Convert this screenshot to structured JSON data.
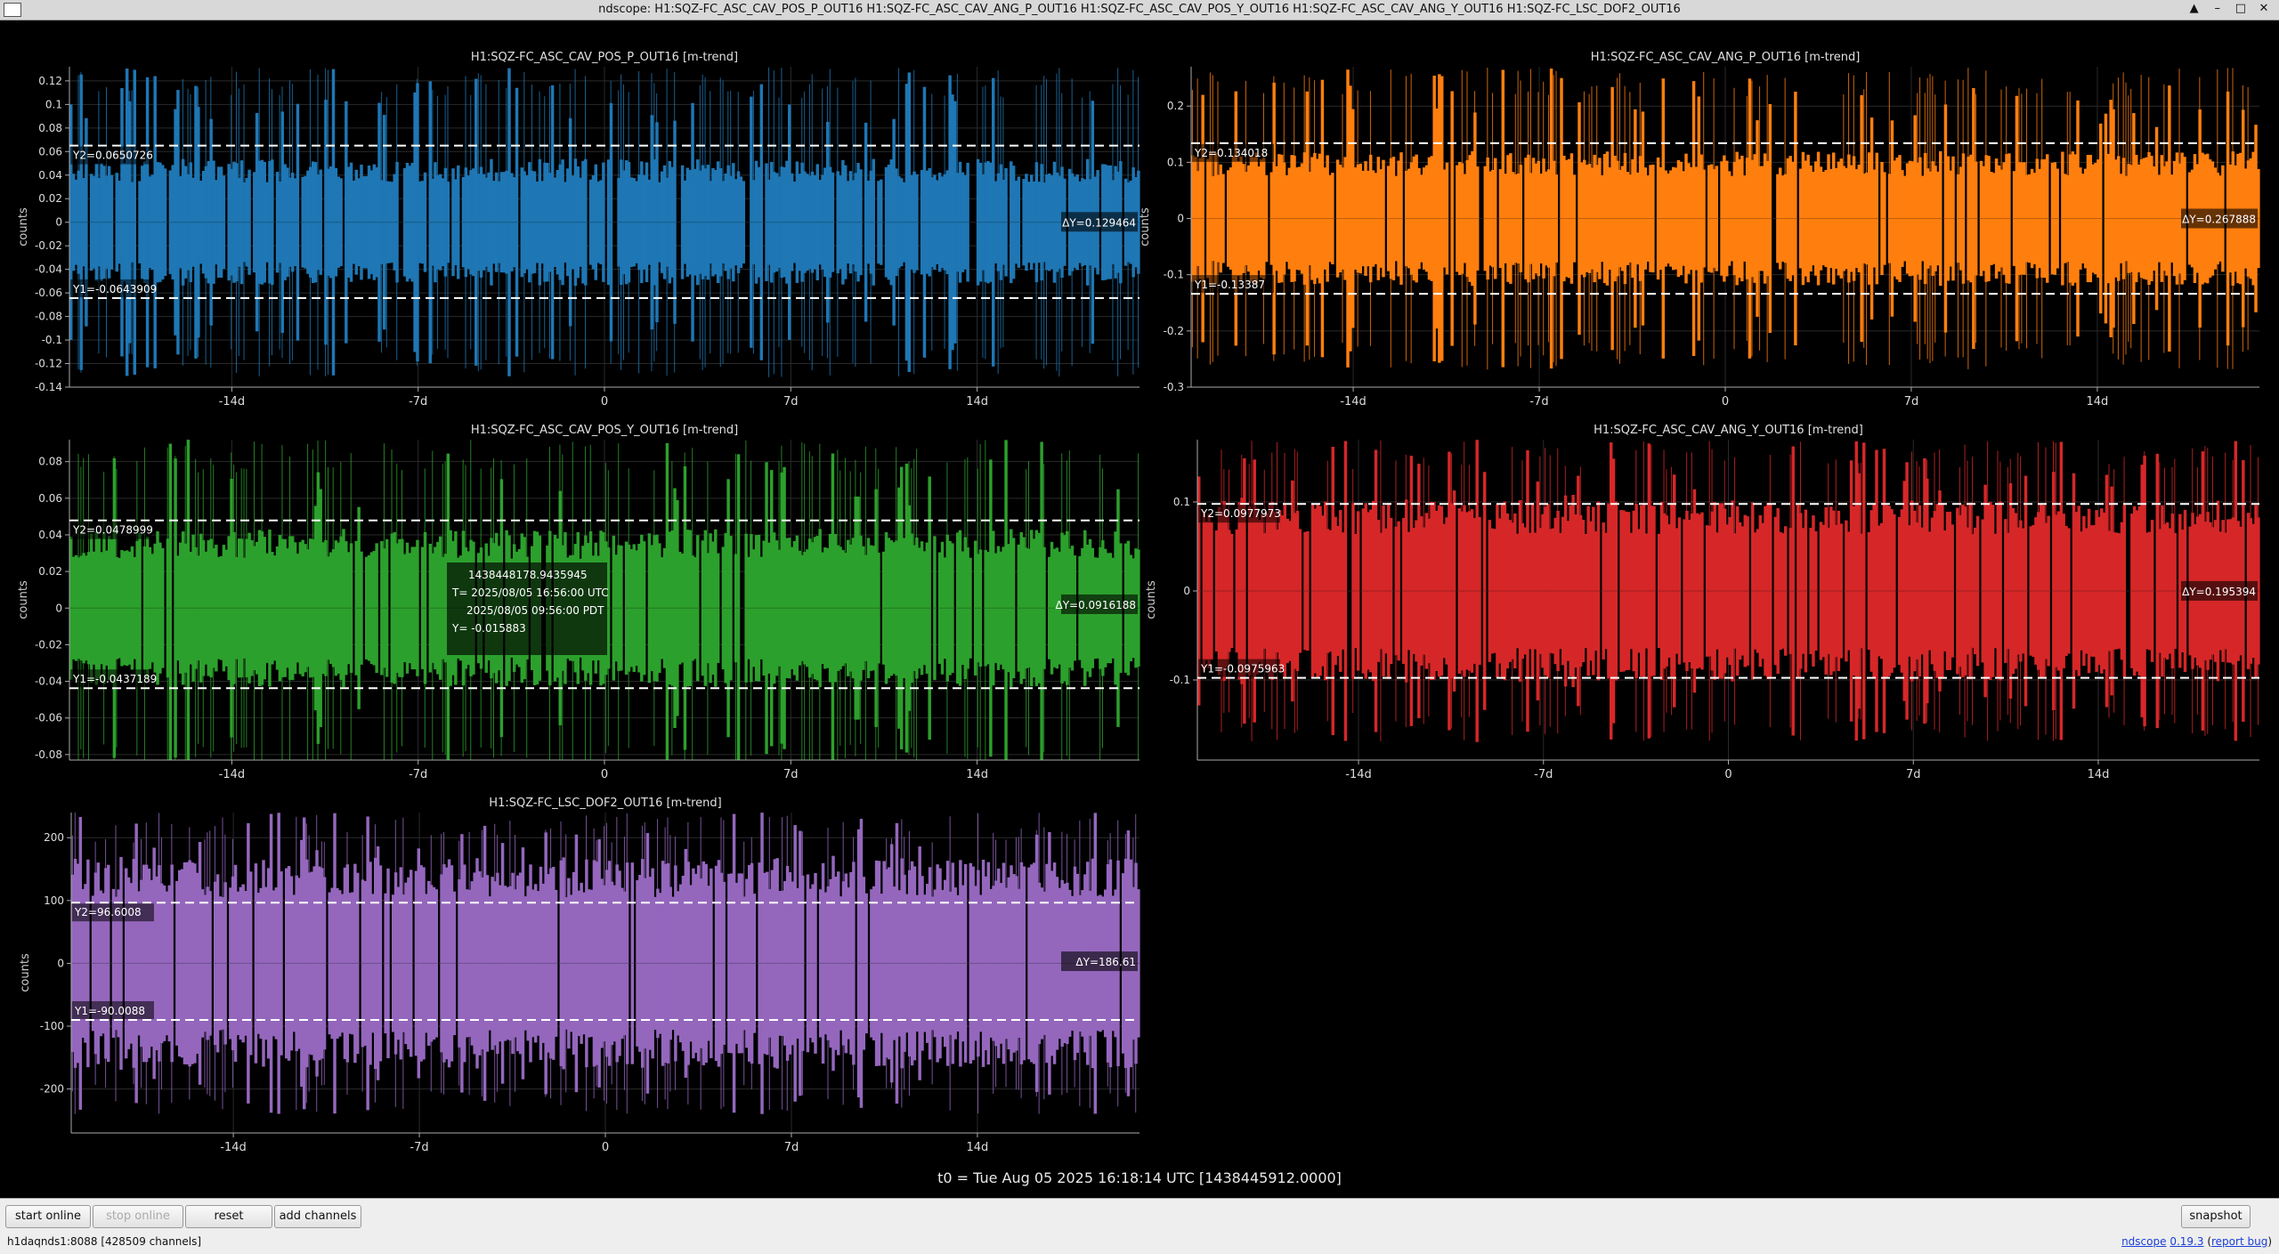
{
  "window": {
    "title": "ndscope: H1:SQZ-FC_ASC_CAV_POS_P_OUT16 H1:SQZ-FC_ASC_CAV_ANG_P_OUT16 H1:SQZ-FC_ASC_CAV_POS_Y_OUT16 H1:SQZ-FC_ASC_CAV_ANG_Y_OUT16 H1:SQZ-FC_LSC_DOF2_OUT16"
  },
  "window_buttons": {
    "up": "▲",
    "minimize": "–",
    "maximize": "□",
    "close": "✕"
  },
  "t0_label": "t0 = Tue Aug 05 2025 16:18:14 UTC [1438445912.0000]",
  "toolbar": {
    "start_online": "start online",
    "stop_online": "stop online",
    "reset": "reset",
    "add_channels": "add channels",
    "snapshot": "snapshot"
  },
  "status": {
    "server": "h1daqnds1:8088  [428509 channels]"
  },
  "version": {
    "app": "ndscope",
    "version": "0.19.3",
    "report": "report bug"
  },
  "cursor_readout": {
    "gps": "1438448178.9435945",
    "utc": "T= 2025/08/05 16:56:00 UTC",
    "pdt": "2025/08/05 09:56:00 PDT",
    "y": "Y= -0.015883"
  },
  "chart_data": [
    {
      "type": "line",
      "title": "H1:SQZ-FC_ASC_CAV_POS_P_OUT16 [m-trend]",
      "ylabel": "counts",
      "color": "#1f77b4",
      "x_ticks": [
        "-14d",
        "-7d",
        "0",
        "7d",
        "14d"
      ],
      "x_tick_values": [
        -14,
        -7,
        0,
        7,
        14
      ],
      "xlim": [
        -20.1,
        20.1
      ],
      "y_ticks": [
        "0.12",
        "0.1",
        "0.08",
        "0.06",
        "0.04",
        "0.02",
        "0",
        "-0.02",
        "-0.04",
        "-0.06",
        "-0.08",
        "-0.1",
        "-0.12",
        "-0.14"
      ],
      "y_tick_values": [
        0.12,
        0.1,
        0.08,
        0.06,
        0.04,
        0.02,
        0,
        -0.02,
        -0.04,
        -0.06,
        -0.08,
        -0.1,
        -0.12,
        -0.14
      ],
      "ylim": [
        -0.14,
        0.132
      ],
      "envelope_typical": 0.045,
      "envelope_max": 0.132,
      "cursors": {
        "y2_value": 0.0650726,
        "y1_value": -0.0643909,
        "y2_label": "Y2=0.0650726",
        "y1_label": "Y1=-0.0643909",
        "dy_label": "ΔY=0.129464"
      }
    },
    {
      "type": "line",
      "title": "H1:SQZ-FC_ASC_CAV_ANG_P_OUT16 [m-trend]",
      "ylabel": "counts",
      "color": "#ff7f0e",
      "x_ticks": [
        "-14d",
        "-7d",
        "0",
        "7d",
        "14d"
      ],
      "x_tick_values": [
        -14,
        -7,
        0,
        7,
        14
      ],
      "xlim": [
        -20.1,
        20.1
      ],
      "y_ticks": [
        "0.2",
        "0.1",
        "0",
        "-0.1",
        "-0.2",
        "-0.3"
      ],
      "y_tick_values": [
        0.2,
        0.1,
        0,
        -0.1,
        -0.2,
        -0.3
      ],
      "ylim": [
        -0.3,
        0.27
      ],
      "envelope_typical": 0.1,
      "envelope_max": 0.27,
      "cursors": {
        "y2_value": 0.134018,
        "y1_value": -0.13387,
        "y2_label": "Y2=0.134018",
        "y1_label": "Y1=-0.13387",
        "dy_label": "ΔY=0.267888"
      }
    },
    {
      "type": "line",
      "title": "H1:SQZ-FC_ASC_CAV_POS_Y_OUT16 [m-trend]",
      "ylabel": "counts",
      "color": "#2ca02c",
      "x_ticks": [
        "-14d",
        "-7d",
        "0",
        "7d",
        "14d"
      ],
      "x_tick_values": [
        -14,
        -7,
        0,
        7,
        14
      ],
      "xlim": [
        -20.1,
        20.1
      ],
      "y_ticks": [
        "0.08",
        "0.06",
        "0.04",
        "0.02",
        "0",
        "-0.02",
        "-0.04",
        "-0.06",
        "-0.08"
      ],
      "y_tick_values": [
        0.08,
        0.06,
        0.04,
        0.02,
        0,
        -0.02,
        -0.04,
        -0.06,
        -0.08
      ],
      "ylim": [
        -0.083,
        0.092
      ],
      "envelope_typical": 0.036,
      "envelope_max": 0.092,
      "cursors": {
        "y2_value": 0.0478999,
        "y1_value": -0.0437189,
        "y2_label": "Y2=0.0478999",
        "y1_label": "Y1=-0.0437189",
        "dy_label": "ΔY=0.0916188"
      }
    },
    {
      "type": "line",
      "title": "H1:SQZ-FC_ASC_CAV_ANG_Y_OUT16 [m-trend]",
      "ylabel": "counts",
      "color": "#d62728",
      "x_ticks": [
        "-14d",
        "-7d",
        "0",
        "7d",
        "14d"
      ],
      "x_tick_values": [
        -14,
        -7,
        0,
        7,
        14
      ],
      "xlim": [
        -20.1,
        20.1
      ],
      "y_ticks": [
        "0.1",
        "0",
        "-0.1"
      ],
      "y_tick_values": [
        0.1,
        0,
        -0.1
      ],
      "ylim": [
        -0.19,
        0.17
      ],
      "envelope_typical": 0.085,
      "envelope_max": 0.17,
      "cursors": {
        "y2_value": 0.0977973,
        "y1_value": -0.0975963,
        "y2_label": "Y2=0.0977973",
        "y1_label": "Y1=-0.0975963",
        "dy_label": "ΔY=0.195394"
      }
    },
    {
      "type": "line",
      "title": "H1:SQZ-FC_LSC_DOF2_OUT16 [m-trend]",
      "ylabel": "counts",
      "color": "#9467bd",
      "x_ticks": [
        "-14d",
        "-7d",
        "0",
        "7d",
        "14d"
      ],
      "x_tick_values": [
        -14,
        -7,
        0,
        7,
        14
      ],
      "xlim": [
        -20.1,
        20.1
      ],
      "y_ticks": [
        "200",
        "100",
        "0",
        "-100",
        "-200"
      ],
      "y_tick_values": [
        200,
        100,
        0,
        -100,
        -200
      ],
      "ylim": [
        -270,
        240
      ],
      "envelope_typical": 140,
      "envelope_max": 240,
      "cursors": {
        "y2_value": 96.6008,
        "y1_value": -90.0088,
        "y2_label": "Y2=96.6008",
        "y1_label": "Y1=-90.0088",
        "dy_label": "ΔY=186.61"
      }
    }
  ]
}
